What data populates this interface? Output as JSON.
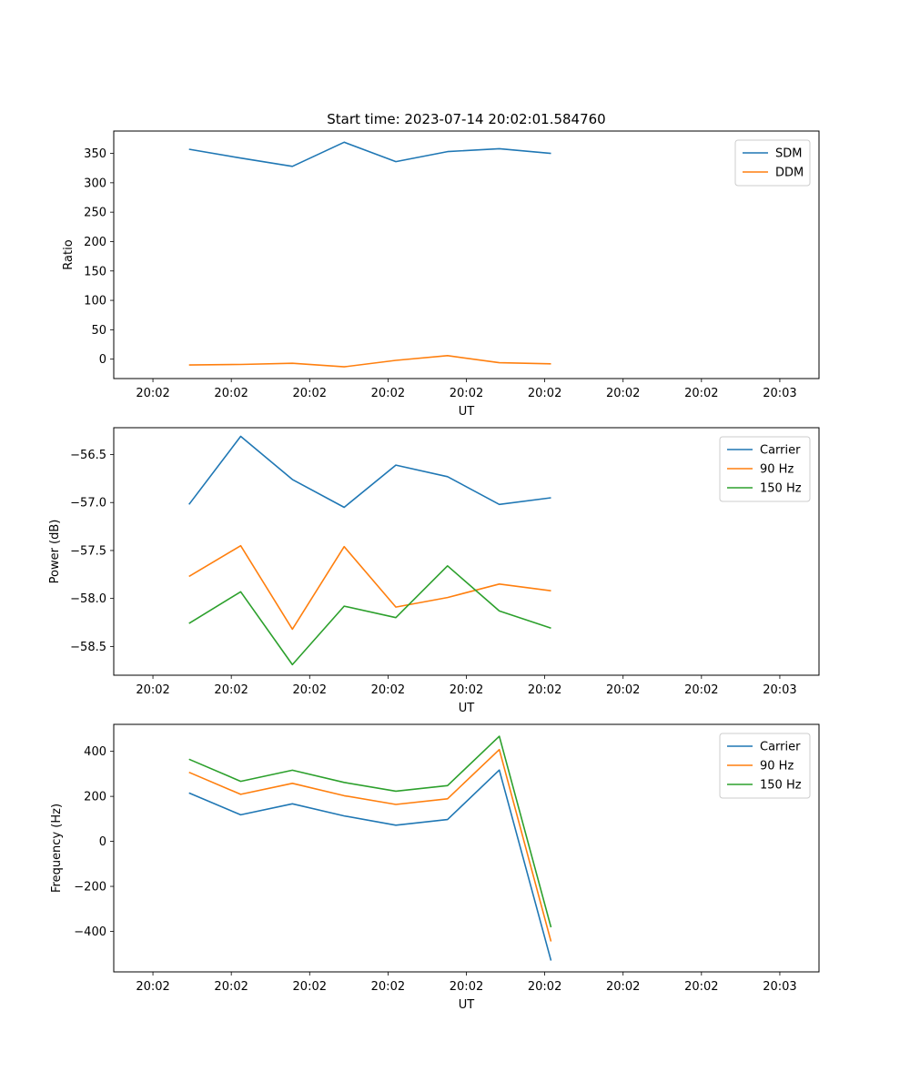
{
  "colors": {
    "blue": "#1f77b4",
    "orange": "#ff7f0e",
    "green": "#2ca02c"
  },
  "chart_data": [
    {
      "type": "line",
      "title": "Start time: 2023-07-14 20:02:01.584760",
      "xlabel": "UT",
      "ylabel": "Ratio",
      "xlim": [
        -0.5,
        8.5
      ],
      "ylim": [
        -33,
        388
      ],
      "x_ticks": [
        0,
        1,
        2,
        3,
        4,
        5,
        6,
        7,
        8
      ],
      "x_tick_labels": [
        "20:02",
        "20:02",
        "20:02",
        "20:02",
        "20:02",
        "20:02",
        "20:02",
        "20:02",
        "20:03"
      ],
      "y_ticks": [
        0,
        50,
        100,
        150,
        200,
        250,
        300,
        350
      ],
      "y_tick_labels": [
        "0",
        "50",
        "100",
        "150",
        "200",
        "250",
        "300",
        "350"
      ],
      "legend": "top-right",
      "x": [
        0.46,
        1.12,
        1.78,
        2.44,
        3.1,
        3.76,
        4.42,
        5.08
      ],
      "series": [
        {
          "name": "SDM",
          "color": "#1f77b4",
          "values": [
            357,
            342,
            328,
            369,
            336,
            353,
            358,
            350
          ]
        },
        {
          "name": "DDM",
          "color": "#ff7f0e",
          "values": [
            -10,
            -9,
            -7,
            -13,
            -2,
            6,
            -6,
            -8
          ]
        }
      ]
    },
    {
      "type": "line",
      "title": "",
      "xlabel": "UT",
      "ylabel": "Power (dB)",
      "xlim": [
        -0.5,
        8.5
      ],
      "ylim": [
        -58.8,
        -56.22
      ],
      "x_ticks": [
        0,
        1,
        2,
        3,
        4,
        5,
        6,
        7,
        8
      ],
      "x_tick_labels": [
        "20:02",
        "20:02",
        "20:02",
        "20:02",
        "20:02",
        "20:02",
        "20:02",
        "20:02",
        "20:03"
      ],
      "y_ticks": [
        -58.5,
        -58.0,
        -57.5,
        -57.0,
        -56.5
      ],
      "y_tick_labels": [
        "−58.5",
        "−58.0",
        "−57.5",
        "−57.0",
        "−56.5"
      ],
      "legend": "top-right",
      "x": [
        0.46,
        1.12,
        1.78,
        2.44,
        3.1,
        3.76,
        4.42,
        5.08
      ],
      "series": [
        {
          "name": "Carrier",
          "color": "#1f77b4",
          "values": [
            -57.02,
            -56.31,
            -56.76,
            -57.05,
            -56.61,
            -56.73,
            -57.02,
            -56.95
          ]
        },
        {
          "name": "90 Hz",
          "color": "#ff7f0e",
          "values": [
            -57.77,
            -57.45,
            -58.32,
            -57.46,
            -58.09,
            -57.99,
            -57.85,
            -57.92
          ]
        },
        {
          "name": "150 Hz",
          "color": "#2ca02c",
          "values": [
            -58.26,
            -57.93,
            -58.69,
            -58.08,
            -58.2,
            -57.66,
            -58.13,
            -58.31
          ]
        }
      ]
    },
    {
      "type": "line",
      "title": "",
      "xlabel": "UT",
      "ylabel": "Frequency (Hz)",
      "xlim": [
        -0.5,
        8.5
      ],
      "ylim": [
        -580,
        520
      ],
      "x_ticks": [
        0,
        1,
        2,
        3,
        4,
        5,
        6,
        7,
        8
      ],
      "x_tick_labels": [
        "20:02",
        "20:02",
        "20:02",
        "20:02",
        "20:02",
        "20:02",
        "20:02",
        "20:02",
        "20:03"
      ],
      "y_ticks": [
        -400,
        -200,
        0,
        200,
        400
      ],
      "y_tick_labels": [
        "−400",
        "−200",
        "0",
        "200",
        "400"
      ],
      "legend": "top-right",
      "x": [
        0.46,
        1.12,
        1.78,
        2.44,
        3.1,
        3.76,
        4.42,
        5.08
      ],
      "series": [
        {
          "name": "Carrier",
          "color": "#1f77b4",
          "values": [
            215,
            118,
            167,
            113,
            72,
            97,
            317,
            -530
          ]
        },
        {
          "name": "90 Hz",
          "color": "#ff7f0e",
          "values": [
            307,
            209,
            258,
            203,
            164,
            189,
            408,
            -445
          ]
        },
        {
          "name": "150 Hz",
          "color": "#2ca02c",
          "values": [
            365,
            267,
            316,
            262,
            223,
            248,
            467,
            -382
          ]
        }
      ]
    }
  ]
}
